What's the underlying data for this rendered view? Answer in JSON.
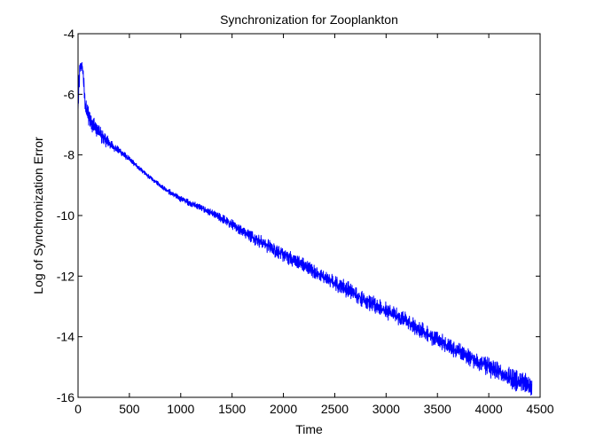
{
  "chart_data": {
    "type": "line",
    "title": "Synchronization for Zooplankton",
    "xlabel": "Time",
    "ylabel": "Log of Synchronization Error",
    "xlim": [
      0,
      4500
    ],
    "ylim": [
      -16,
      -4
    ],
    "xticks": [
      0,
      500,
      1000,
      1500,
      2000,
      2500,
      3000,
      3500,
      4000,
      4500
    ],
    "yticks": [
      -16,
      -14,
      -12,
      -10,
      -8,
      -6,
      -4
    ],
    "x_tick_labels": [
      "0",
      "500",
      "1000",
      "1500",
      "2000",
      "2500",
      "3000",
      "3500",
      "4000",
      "4500"
    ],
    "y_tick_labels": [
      "-16",
      "-14",
      "-12",
      "-10",
      "-8",
      "-6",
      "-4"
    ],
    "grid": false,
    "line_color": "#0000ff",
    "series": [
      {
        "x": [
          0,
          10,
          20,
          30,
          40,
          50,
          60,
          70,
          80,
          100,
          150,
          200,
          250,
          300,
          350,
          400,
          500,
          600,
          700,
          800,
          900,
          1000,
          1200,
          1400,
          1600,
          1800,
          2000,
          2200,
          2400,
          2600,
          2800,
          3000,
          3200,
          3400,
          3600,
          3800,
          4000,
          4200,
          4300,
          4400,
          4420
        ],
        "y": [
          -6.6,
          -5.6,
          -5.2,
          -5.05,
          -5.1,
          -5.3,
          -5.9,
          -6.3,
          -6.5,
          -6.7,
          -7.0,
          -7.25,
          -7.45,
          -7.6,
          -7.75,
          -7.85,
          -8.15,
          -8.45,
          -8.75,
          -9.0,
          -9.25,
          -9.45,
          -9.75,
          -10.1,
          -10.5,
          -10.9,
          -11.3,
          -11.65,
          -12.05,
          -12.4,
          -12.8,
          -13.15,
          -13.5,
          -13.9,
          -14.3,
          -14.65,
          -15.0,
          -15.35,
          -15.5,
          -15.6,
          -15.6
        ],
        "noise": [
          0.6,
          0.5,
          0.3,
          0.2,
          0.2,
          0.3,
          0.3,
          0.3,
          0.3,
          0.35,
          0.35,
          0.3,
          0.25,
          0.2,
          0.15,
          0.12,
          0.1,
          0.08,
          0.08,
          0.08,
          0.1,
          0.1,
          0.12,
          0.15,
          0.2,
          0.25,
          0.25,
          0.25,
          0.25,
          0.3,
          0.3,
          0.3,
          0.3,
          0.3,
          0.3,
          0.3,
          0.35,
          0.35,
          0.4,
          0.4,
          0.4
        ]
      }
    ]
  }
}
